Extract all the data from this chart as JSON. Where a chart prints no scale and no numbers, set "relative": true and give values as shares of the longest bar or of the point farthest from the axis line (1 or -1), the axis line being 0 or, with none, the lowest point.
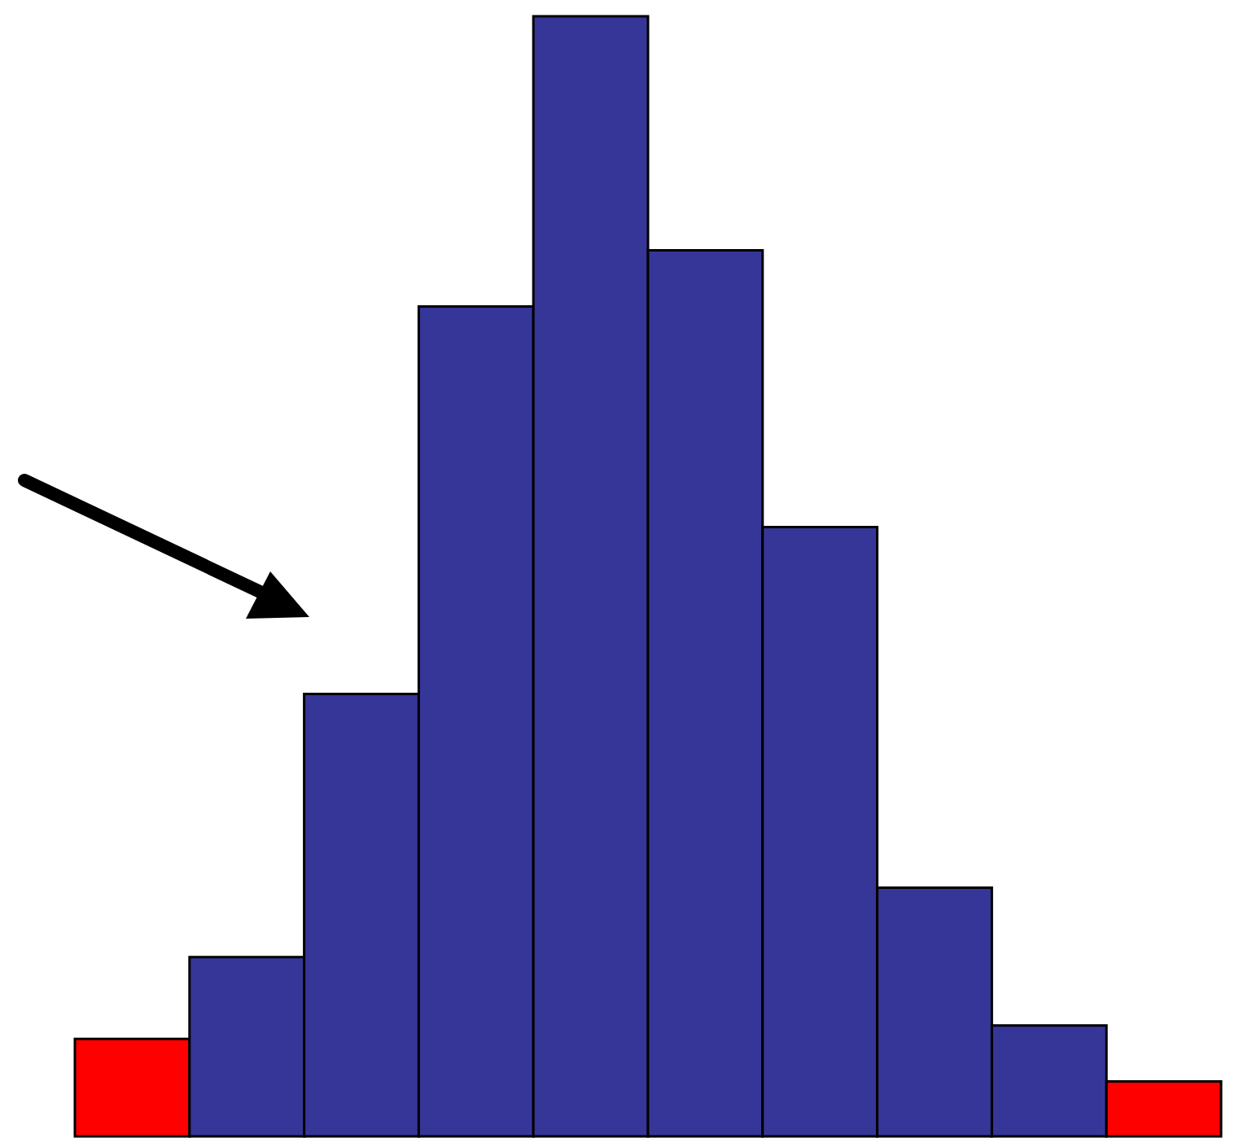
{
  "chart_data": {
    "type": "bar",
    "relative": true,
    "categories": [
      null,
      null,
      null,
      null,
      null,
      null,
      null,
      null,
      null,
      null
    ],
    "values": [
      0.087,
      0.16,
      0.395,
      0.741,
      1,
      0.791,
      0.544,
      0.222,
      0.099,
      0.049
    ],
    "colors": [
      "#ff0000",
      "#363699",
      "#363699",
      "#363699",
      "#363699",
      "#363699",
      "#363699",
      "#363699",
      "#363699",
      "#ff0000"
    ]
  }
}
